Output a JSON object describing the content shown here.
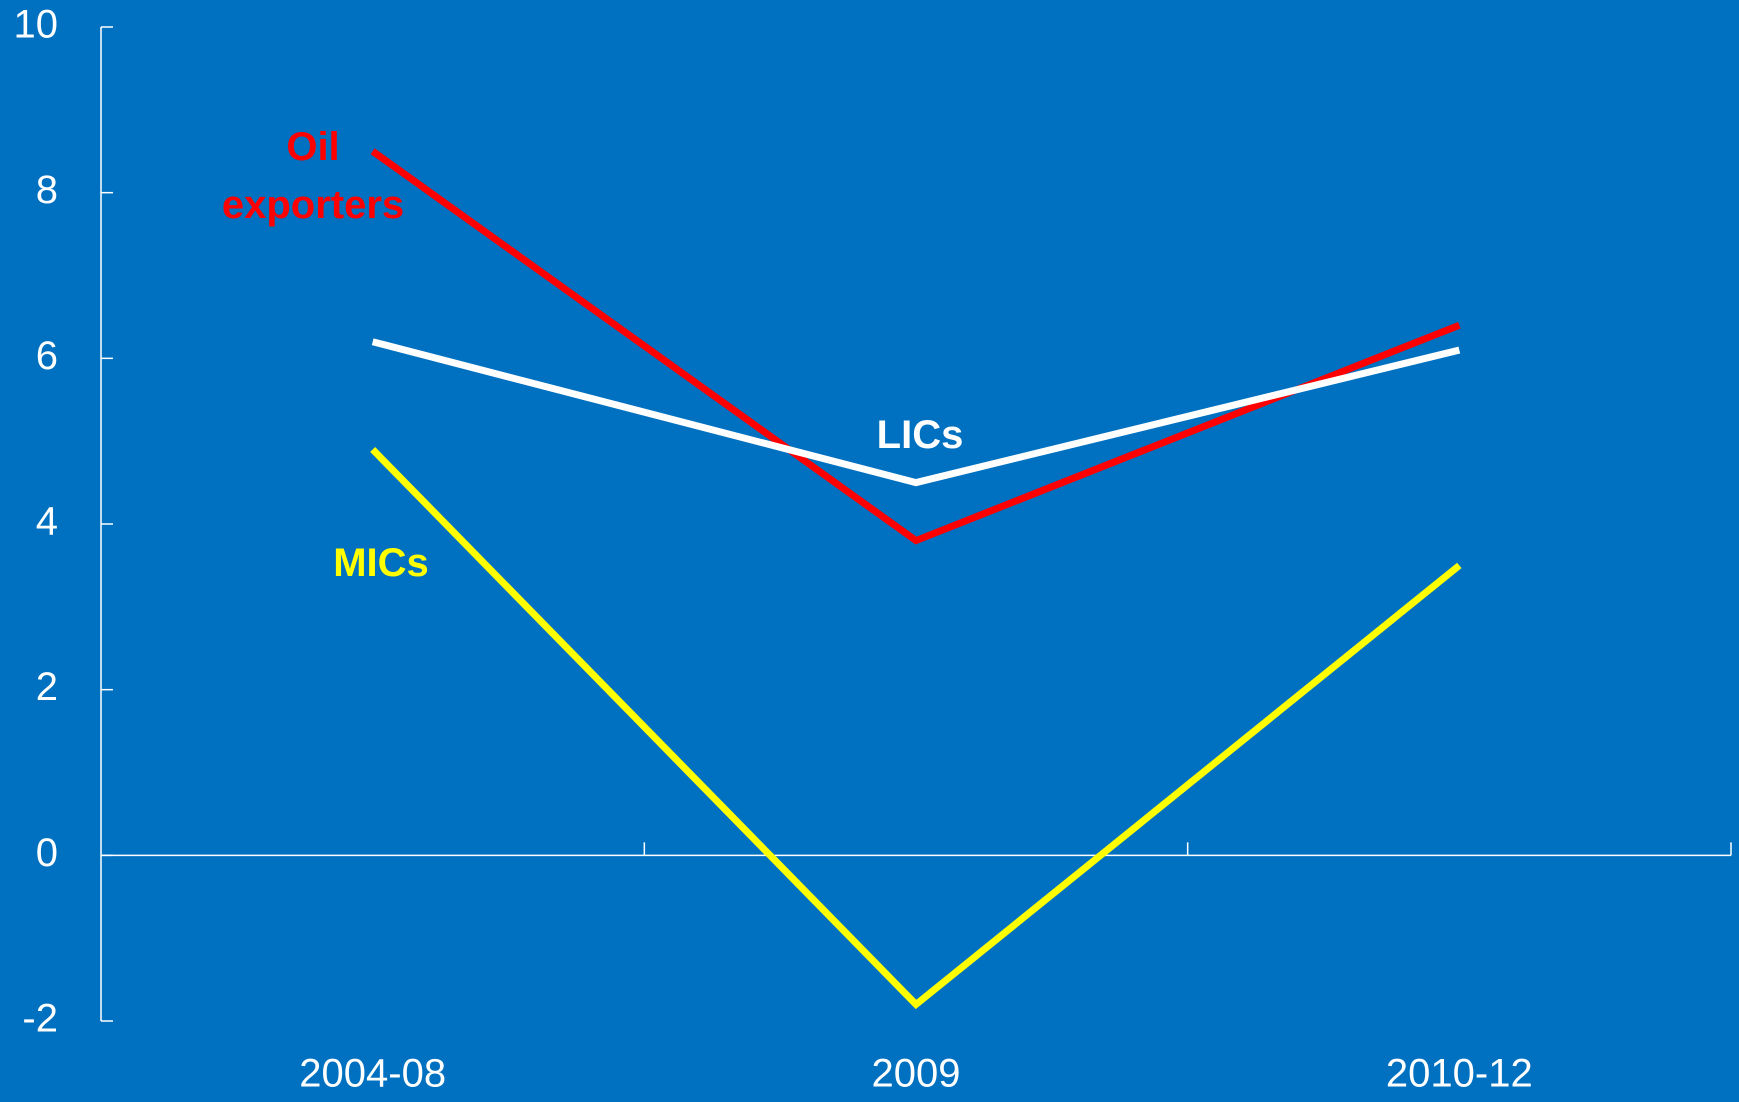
{
  "chart_data": {
    "type": "line",
    "categories": [
      "2004-08",
      "2009",
      "2010-12"
    ],
    "series": [
      {
        "name": "Oil exporters",
        "color": "#ff0000",
        "values": [
          8.5,
          3.8,
          6.4
        ]
      },
      {
        "name": "LICs",
        "color": "#ffffff",
        "values": [
          6.2,
          4.5,
          6.1
        ]
      },
      {
        "name": "MICs",
        "color": "#ffff00",
        "values": [
          4.9,
          -1.8,
          3.5
        ]
      }
    ],
    "ylim": [
      -2,
      10
    ],
    "yticks": [
      -2,
      0,
      2,
      4,
      6,
      8,
      10
    ],
    "grid": false
  }
}
